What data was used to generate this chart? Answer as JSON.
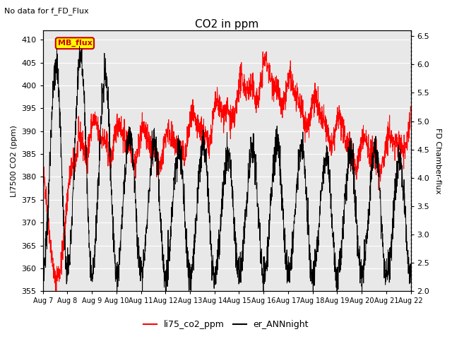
{
  "title": "CO2 in ppm",
  "subtitle": "No data for f_FD_Flux",
  "ylabel_left": "LI7500 CO2 (ppm)",
  "ylabel_right": "FD Chamber-flux",
  "ylim_left": [
    355,
    412
  ],
  "ylim_right": [
    2.0,
    6.6
  ],
  "yticks_left": [
    355,
    360,
    365,
    370,
    375,
    380,
    385,
    390,
    395,
    400,
    405,
    410
  ],
  "yticks_right": [
    2.0,
    2.5,
    3.0,
    3.5,
    4.0,
    4.5,
    5.0,
    5.5,
    6.0,
    6.5
  ],
  "xticklabels": [
    "Aug 7",
    "Aug 8",
    "Aug 9",
    "Aug 10",
    "Aug 11",
    "Aug 12",
    "Aug 13",
    "Aug 14",
    "Aug 15",
    "Aug 16",
    "Aug 17",
    "Aug 18",
    "Aug 19",
    "Aug 20",
    "Aug 21",
    "Aug 22"
  ],
  "color_red": "#ff0000",
  "color_black": "#000000",
  "legend_label_red": "li75_co2_ppm",
  "legend_label_black": "er_ANNnight",
  "mb_flux_label": "MB_flux",
  "mb_flux_bg": "#ffff00",
  "mb_flux_border": "#cc0000",
  "background_color": "#e8e8e8",
  "grid_color": "#ffffff",
  "n_days": 15,
  "seed": 42
}
